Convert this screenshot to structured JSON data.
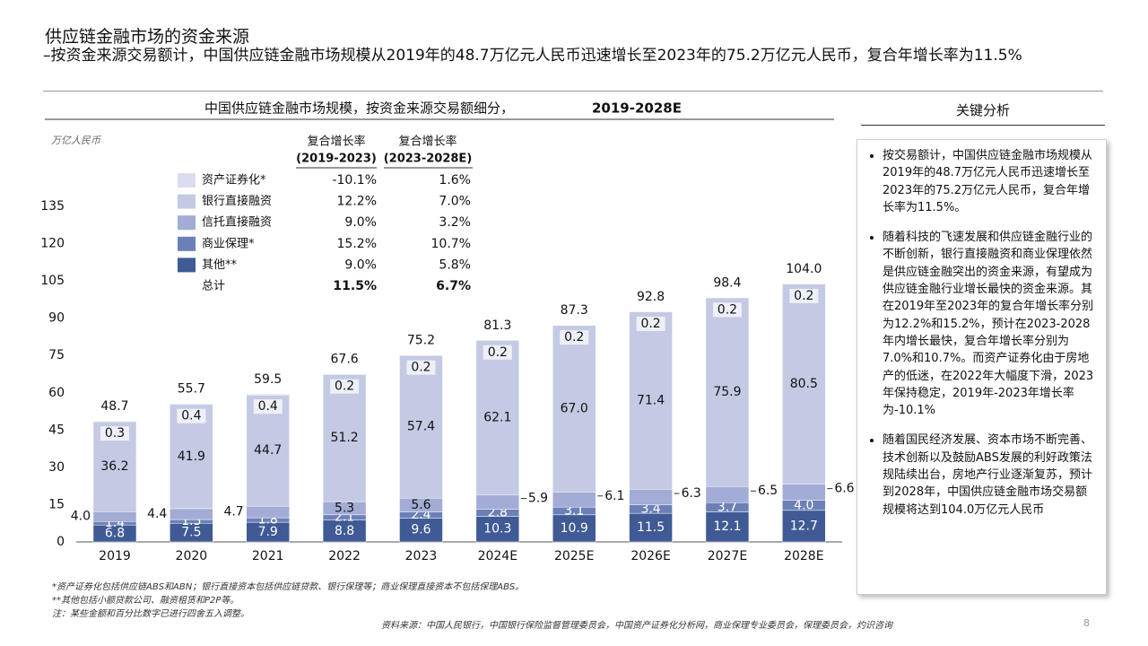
{
  "header": {
    "title": "供应链金融市场的资金来源",
    "subtitle": "–按资金来源交易额计，中国供应链金融市场规模从2019年的48.7万亿元人民币迅速增长至2023年的75.2万亿元人民币，复合年增长率为11.5%"
  },
  "chart_data": {
    "type": "stacked-bar",
    "title": "中国供应链金融市场规模，按资金来源交易额细分，",
    "title_period": "2019-2028E",
    "unit": "万亿人民币",
    "categories": [
      "2019",
      "2020",
      "2021",
      "2022",
      "2023",
      "2024E",
      "2025E",
      "2026E",
      "2027E",
      "2028E"
    ],
    "cagr_headers": [
      [
        "复合增长率",
        "(2019-2023)"
      ],
      [
        "复合增长率",
        "(2023-2028E)"
      ]
    ],
    "series": [
      {
        "name": "资产证券化*",
        "color": "#d9ddef",
        "cagr": [
          "-10.1%",
          "1.6%"
        ],
        "values": [
          0.3,
          0.4,
          0.4,
          0.2,
          0.2,
          0.2,
          0.2,
          0.2,
          0.2,
          0.2
        ],
        "value_labels": [
          "0.3",
          "0.4",
          "0.4",
          "0.2",
          "0.2",
          "0.2",
          "0.2",
          "0.2",
          "0.2",
          "0.2"
        ]
      },
      {
        "name": "银行直接融资",
        "color": "#c4cae4",
        "cagr": [
          "12.2%",
          "7.0%"
        ],
        "values": [
          36.2,
          41.9,
          44.7,
          51.2,
          57.4,
          62.1,
          67.0,
          71.4,
          75.9,
          80.5
        ],
        "value_labels": [
          "36.2",
          "41.9",
          "44.7",
          "51.2",
          "57.4",
          "62.1",
          "67.0",
          "71.4",
          "75.9",
          "80.5"
        ]
      },
      {
        "name": "信托直接融资",
        "color": "#a2acd5",
        "cagr": [
          "9.0%",
          "3.2%"
        ],
        "values": [
          4.0,
          4.4,
          4.7,
          5.3,
          5.6,
          5.9,
          6.1,
          6.3,
          6.5,
          6.6
        ],
        "value_labels": [
          "4.0",
          "4.4",
          "4.7",
          "5.3",
          "5.6",
          "5.9",
          "6.1",
          "6.3",
          "6.5",
          "6.6"
        ]
      },
      {
        "name": "商业保理*",
        "color": "#6c80b8",
        "cagr": [
          "15.2%",
          "10.7%"
        ],
        "values": [
          1.4,
          1.5,
          1.8,
          2.1,
          2.4,
          2.8,
          3.1,
          3.4,
          3.7,
          4.0
        ],
        "value_labels": [
          "1.4",
          "1.5",
          "1.8",
          "2.1",
          "2.4",
          "2.8",
          "3.1",
          "3.4",
          "3.7",
          "4.0"
        ]
      },
      {
        "name": "其他**",
        "color": "#3f5a95",
        "cagr": [
          "9.0%",
          "5.8%"
        ],
        "values": [
          6.8,
          7.5,
          7.9,
          8.8,
          9.6,
          10.3,
          10.9,
          11.5,
          12.1,
          12.7
        ],
        "value_labels": [
          "6.8",
          "7.5",
          "7.9",
          "8.8",
          "9.6",
          "10.3",
          "10.9",
          "11.5",
          "12.1",
          "12.7"
        ]
      }
    ],
    "total": {
      "name": "总计",
      "cagr": [
        "11.5%",
        "6.7%"
      ],
      "values": [
        48.7,
        55.7,
        59.5,
        67.6,
        75.2,
        81.3,
        87.3,
        92.8,
        98.4,
        104.0
      ],
      "value_labels": [
        "48.7",
        "55.7",
        "59.5",
        "67.6",
        "75.2",
        "81.3",
        "87.3",
        "92.8",
        "98.4",
        "104.0"
      ]
    },
    "ylim": [
      0,
      135
    ],
    "yticks": [
      0,
      15,
      30,
      45,
      60,
      75,
      90,
      105,
      120,
      135
    ]
  },
  "analysis": {
    "title": "关键分析",
    "bullets": [
      "按交易额计，中国供应链金融市场规模从2019年的48.7万亿元人民币迅速增长至2023年的75.2万亿元人民币，复合年增长率为11.5%。",
      "随着科技的飞速发展和供应链金融行业的不断创新，银行直接融资和商业保理依然是供应链金融突出的资金来源，有望成为供应链金融行业增长最快的资金来源。其在2019年至2023年的复合年增长率分别为12.2%和15.2%，预计在2023-2028年内增长最快，复合年增长率分别为7.0%和10.7%。而资产证券化由于房地产的低迷，在2022年大幅度下滑，2023年保持稳定，2019年-2023年增长率为-10.1%",
      "随着国民经济发展、资本市场不断完善、技术创新以及鼓励ABS发展的利好政策法规陆续出台，房地产行业逐渐复苏，预计到2028年，中国供应链金融市场交易额规模将达到104.0万亿元人民币"
    ]
  },
  "footnotes": [
    "*资产证券化包括供应链ABS和ABN；银行直接资本包括供应链贷款、银行保理等；商业保理直接资本不包括保理ABS。",
    "**其他包括小额贷款公司、融资租赁和P2P等。",
    "注：某些金额和百分比数字已进行四舍五入调整。"
  ],
  "source": "资料来源：中国人民银行，中国银行保险监督管理委员会，中国资产证券化分析网，商业保理专业委员会，保理委员会，灼识咨询",
  "page": "8"
}
